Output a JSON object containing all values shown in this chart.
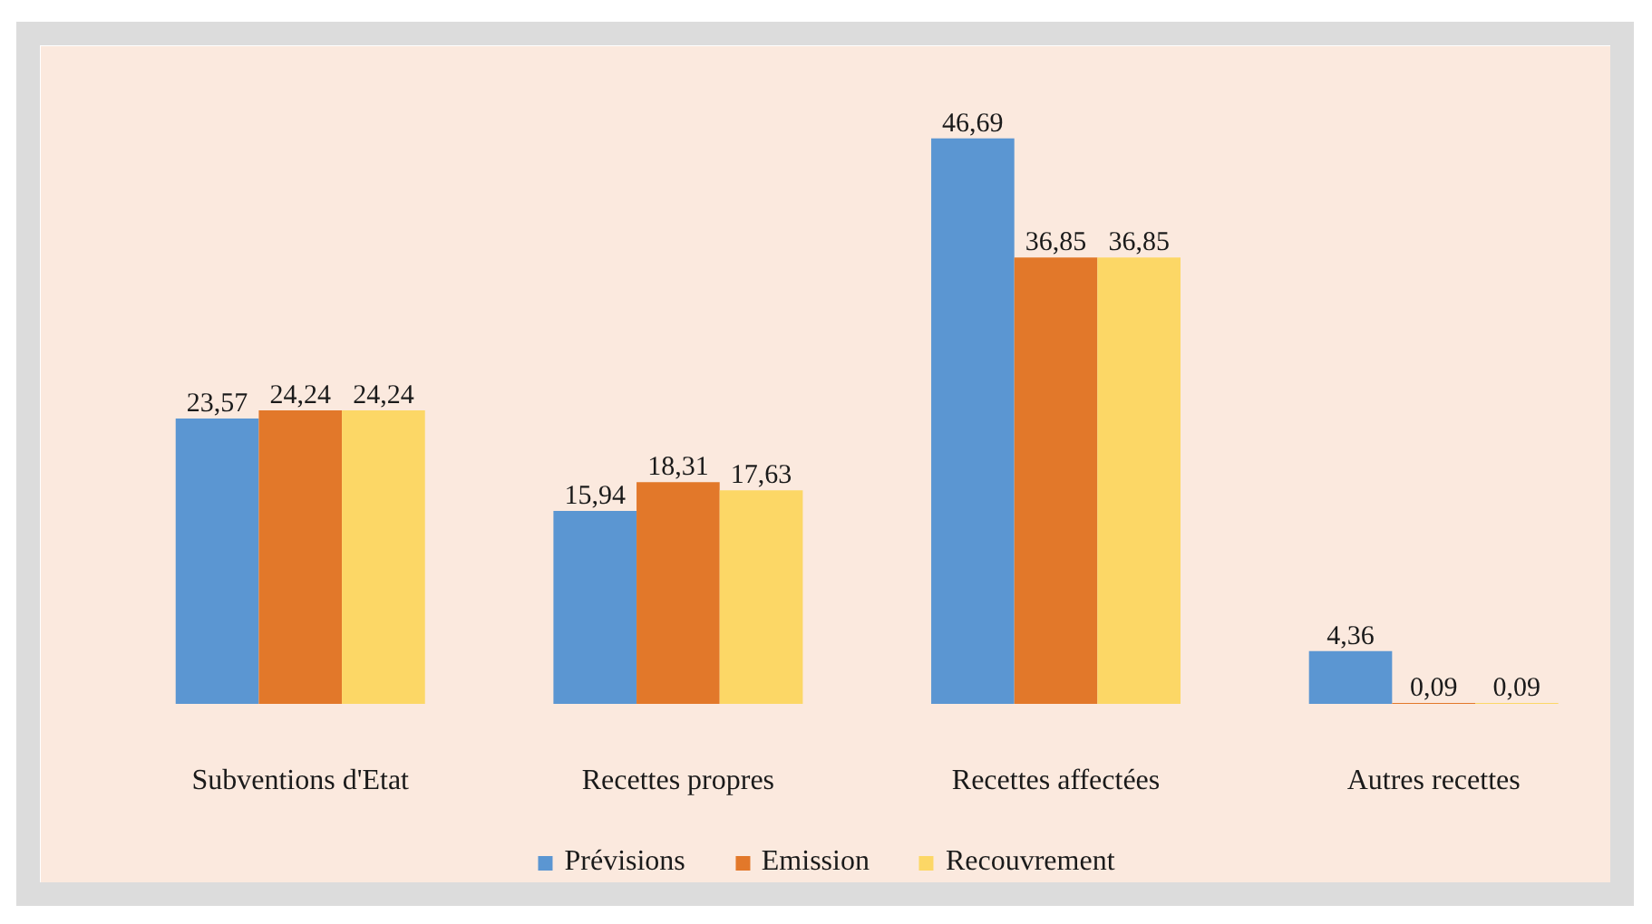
{
  "chart_data": {
    "type": "bar",
    "categories": [
      "Subventions d'Etat",
      "Recettes propres",
      "Recettes affectées",
      "Autres recettes"
    ],
    "series": [
      {
        "name": "Prévisions",
        "color": "#5b96d2",
        "values": [
          23.57,
          15.94,
          46.69,
          4.36
        ],
        "value_labels": [
          "23,57",
          "15,94",
          "46,69",
          "4,36"
        ]
      },
      {
        "name": "Emission",
        "color": "#e2782a",
        "values": [
          24.24,
          18.31,
          36.85,
          0.09
        ],
        "value_labels": [
          "24,24",
          "18,31",
          "36,85",
          "0,09"
        ]
      },
      {
        "name": "Recouvrement",
        "color": "#fcd766",
        "values": [
          24.24,
          17.63,
          36.85,
          0.09
        ],
        "value_labels": [
          "24,24",
          "17,63",
          "36,85",
          "0,09"
        ]
      }
    ],
    "legend": "bottom"
  }
}
